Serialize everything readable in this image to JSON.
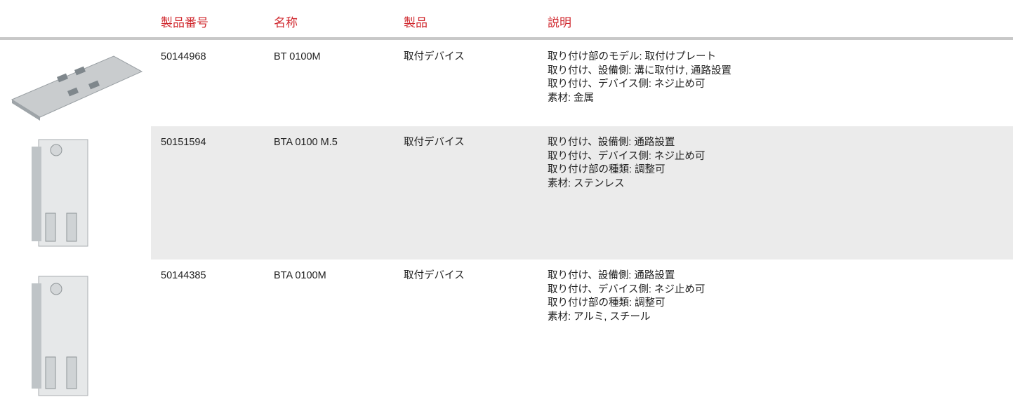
{
  "table": {
    "headers": [
      "製品番号",
      "名称",
      "製品",
      "説明"
    ],
    "rows": [
      {
        "product_number": "50144968",
        "name": "BT 0100M",
        "product": "取付デバイス",
        "description": [
          "取り付け部のモデル: 取付けプレート",
          "取り付け、設備側: 溝に取付け, 通路設置",
          "取り付け、デバイス側: ネジ止め可",
          "素材: 金属"
        ]
      },
      {
        "product_number": "50151594",
        "name": "BTA 0100 M.5",
        "product": "取付デバイス",
        "description": [
          "取り付け、設備側: 通路設置",
          "取り付け、デバイス側: ネジ止め可",
          "取り付け部の種類: 調整可",
          "素材: ステンレス"
        ]
      },
      {
        "product_number": "50144385",
        "name": "BTA 0100M",
        "product": "取付デバイス",
        "description": [
          "取り付け、設備側: 通路設置",
          "取り付け、デバイス側: ネジ止め可",
          "取り付け部の種類: 調整可",
          "素材: アルミ, スチール"
        ]
      }
    ]
  }
}
